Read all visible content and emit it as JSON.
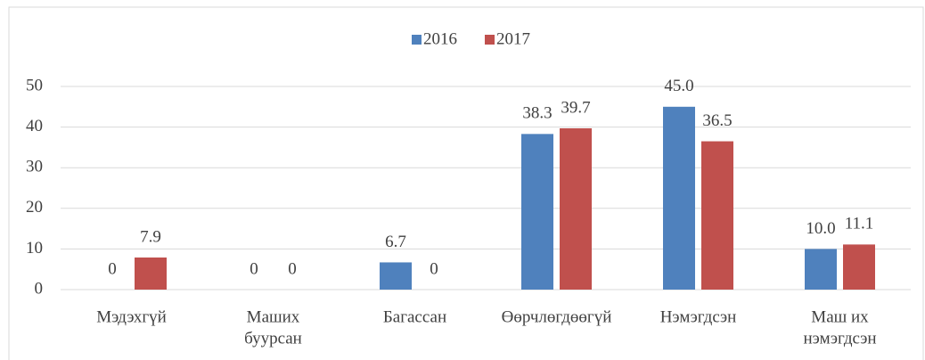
{
  "chart_data": {
    "type": "bar",
    "categories": [
      [
        "Мэдэхгүй"
      ],
      [
        "Маших",
        "буурсан"
      ],
      [
        "Багассан"
      ],
      [
        "Өөрчлөгдөөгүй"
      ],
      [
        "Нэмэгдсэн"
      ],
      [
        "Маш их",
        "нэмэгдсэн"
      ]
    ],
    "series": [
      {
        "name": "2016",
        "color": "#4f81bd",
        "values": [
          0,
          0,
          6.7,
          38.3,
          45.0,
          10.0
        ],
        "value_labels": [
          "0",
          "0",
          "6.7",
          "38.3",
          "45.0",
          "10.0"
        ]
      },
      {
        "name": "2017",
        "color": "#c0504d",
        "values": [
          7.9,
          0,
          0,
          39.7,
          36.5,
          11.1
        ],
        "value_labels": [
          "7.9",
          "0",
          "0",
          "39.7",
          "36.5",
          "11.1"
        ]
      }
    ],
    "ylim": [
      0,
      50
    ],
    "yticks": [
      0,
      10,
      20,
      30,
      40,
      50
    ],
    "grid": true,
    "legend": "top"
  }
}
